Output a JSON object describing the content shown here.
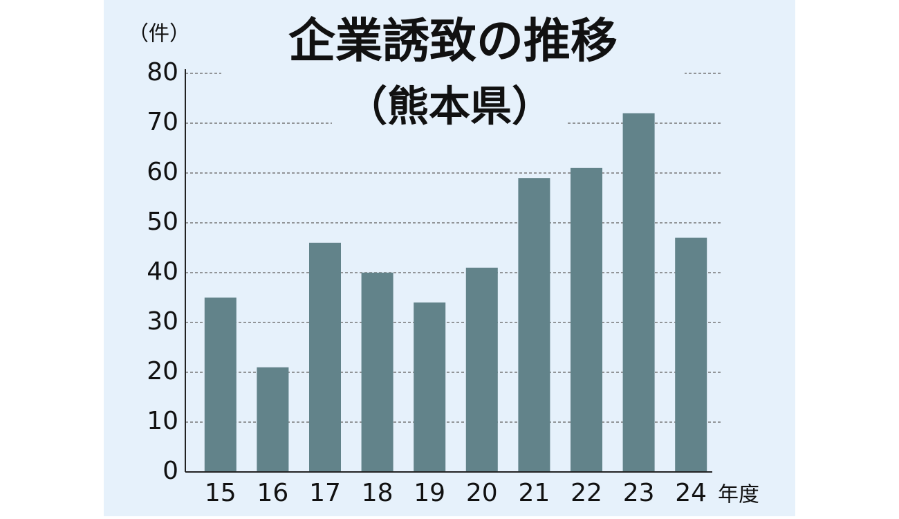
{
  "chart_data": {
    "type": "bar",
    "title": "企業誘致の推移",
    "subtitle": "（熊本県）",
    "y_label": "（件）",
    "x_label": "年度",
    "categories": [
      "15",
      "16",
      "17",
      "18",
      "19",
      "20",
      "21",
      "22",
      "23",
      "24"
    ],
    "values": [
      35,
      21,
      46,
      40,
      34,
      41,
      59,
      61,
      72,
      47
    ],
    "color": "#62838a",
    "background": "#e6f1fb",
    "ylim": [
      0,
      80
    ],
    "yticks": [
      0,
      10,
      20,
      30,
      40,
      50,
      60,
      70,
      80
    ],
    "grid": true
  }
}
